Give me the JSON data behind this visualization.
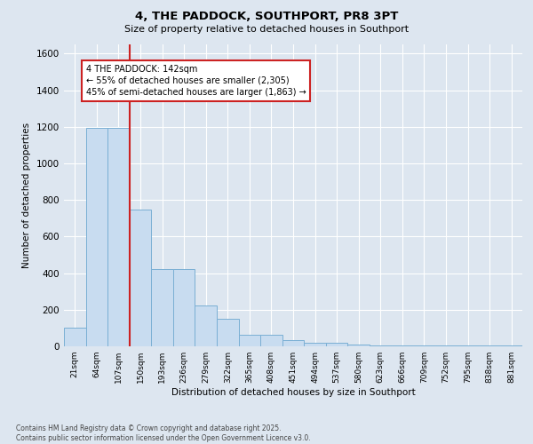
{
  "title": "4, THE PADDOCK, SOUTHPORT, PR8 3PT",
  "subtitle": "Size of property relative to detached houses in Southport",
  "xlabel": "Distribution of detached houses by size in Southport",
  "ylabel": "Number of detached properties",
  "categories": [
    "21sqm",
    "64sqm",
    "107sqm",
    "150sqm",
    "193sqm",
    "236sqm",
    "279sqm",
    "322sqm",
    "365sqm",
    "408sqm",
    "451sqm",
    "494sqm",
    "537sqm",
    "580sqm",
    "623sqm",
    "666sqm",
    "709sqm",
    "752sqm",
    "795sqm",
    "838sqm",
    "881sqm"
  ],
  "values": [
    100,
    1195,
    1195,
    748,
    420,
    420,
    225,
    150,
    65,
    65,
    35,
    20,
    20,
    10,
    5,
    5,
    5,
    5,
    5,
    5,
    5
  ],
  "bar_color": "#c8dcf0",
  "bar_edge_color": "#7aafd4",
  "annotation_box_text": "4 THE PADDOCK: 142sqm\n← 55% of detached houses are smaller (2,305)\n45% of semi-detached houses are larger (1,863) →",
  "annotation_box_facecolor": "white",
  "annotation_box_edge_color": "#cc2222",
  "vline_color": "#cc2222",
  "vline_pos": 2.5,
  "ylim": [
    0,
    1650
  ],
  "yticks": [
    0,
    200,
    400,
    600,
    800,
    1000,
    1200,
    1400,
    1600
  ],
  "background_color": "#dde6f0",
  "grid_color": "#ffffff",
  "footer_line1": "Contains HM Land Registry data © Crown copyright and database right 2025.",
  "footer_line2": "Contains public sector information licensed under the Open Government Licence v3.0."
}
